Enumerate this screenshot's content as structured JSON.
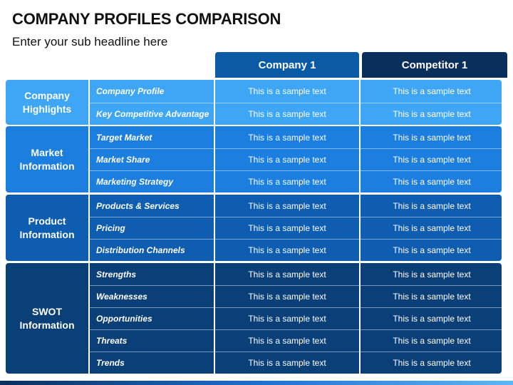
{
  "header": {
    "title": "COMPANY PROFILES COMPARISON",
    "subtitle": "Enter your sub headline here"
  },
  "columns": [
    "Company 1",
    "Competitor 1"
  ],
  "groups": [
    {
      "label": "Company Highlights",
      "color": "#3fa6f5",
      "rows": [
        {
          "category": "Company Profile",
          "company": "This is a sample text",
          "competitor": "This is a sample text"
        },
        {
          "category": "Key Competitive Advantage",
          "company": "This is a sample text",
          "competitor": "This is a sample text"
        }
      ]
    },
    {
      "label": "Market Information",
      "color": "#1c7fe0",
      "rows": [
        {
          "category": "Target Market",
          "company": "This is a sample text",
          "competitor": "This is a sample text"
        },
        {
          "category": "Market Share",
          "company": "This is a sample text",
          "competitor": "This is a sample text"
        },
        {
          "category": "Marketing Strategy",
          "company": "This is a sample text",
          "competitor": "This is a sample text"
        }
      ]
    },
    {
      "label": "Product Information",
      "color": "#0f5db0",
      "rows": [
        {
          "category": "Products & Services",
          "company": "This is a sample text",
          "competitor": "This is a sample text"
        },
        {
          "category": "Pricing",
          "company": "This is a sample text",
          "competitor": "This is a sample text"
        },
        {
          "category": "Distribution Channels",
          "company": "This is a sample text",
          "competitor": "This is a sample text"
        }
      ]
    },
    {
      "label": "SWOT Information",
      "color": "#0a3f78",
      "rows": [
        {
          "category": "Strengths",
          "company": "This is a sample text",
          "competitor": "This is a sample text"
        },
        {
          "category": "Weaknesses",
          "company": "This is a sample text",
          "competitor": "This is a sample text"
        },
        {
          "category": "Opportunities",
          "company": "This is a sample text",
          "competitor": "This is a sample text"
        },
        {
          "category": "Threats",
          "company": "This is a sample text",
          "competitor": "This is a sample text"
        },
        {
          "category": "Trends",
          "company": "This is a sample text",
          "competitor": "This is a sample text"
        }
      ]
    }
  ]
}
